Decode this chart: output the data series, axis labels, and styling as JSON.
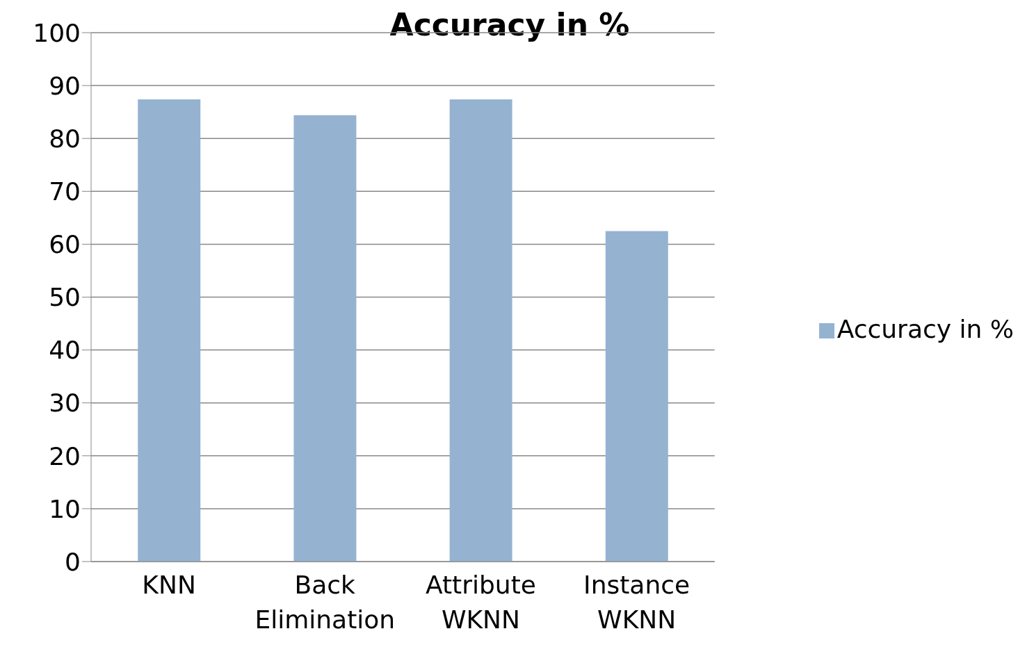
{
  "chart_data": {
    "type": "bar",
    "title": "Accuracy in %",
    "categories": [
      "KNN",
      "Back Elimination",
      "Attribute WKNN",
      "Instance WKNN"
    ],
    "series": [
      {
        "name": "Accuracy in %",
        "color": "#95b3d1",
        "values": [
          87.4,
          84.4,
          87.4,
          62.5
        ]
      }
    ],
    "ylim": [
      0,
      100
    ],
    "yticks": [
      0,
      10,
      20,
      30,
      40,
      50,
      60,
      70,
      80,
      90,
      100
    ],
    "grid": "y",
    "legend": "right"
  }
}
